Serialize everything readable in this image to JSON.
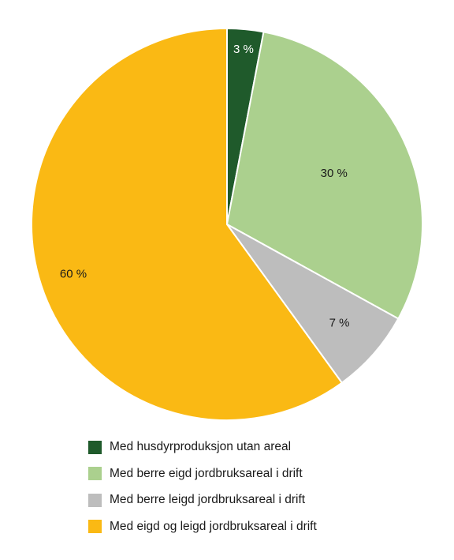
{
  "chart_data": {
    "type": "pie",
    "title": "",
    "start": "top",
    "direction": "clockwise",
    "slices": [
      {
        "label": "Med husdyrproduksjon utan areal",
        "value": 3,
        "display": "3 %",
        "color": "#1f5a2b",
        "label_color": "#ffffff"
      },
      {
        "label": "Med berre eigd jordbruksareal i drift",
        "value": 30,
        "display": "30 %",
        "color": "#abd08e",
        "label_color": "#1a1a1a"
      },
      {
        "label": "Med berre leigd jordbruksareal i drift",
        "value": 7,
        "display": "7 %",
        "color": "#bdbdbd",
        "label_color": "#1a1a1a"
      },
      {
        "label": "Med eigd og leigd jordbruksareal i drift",
        "value": 60,
        "display": "60 %",
        "color": "#fab914",
        "label_color": "#1a1a1a"
      }
    ],
    "legend_position": "bottom"
  }
}
